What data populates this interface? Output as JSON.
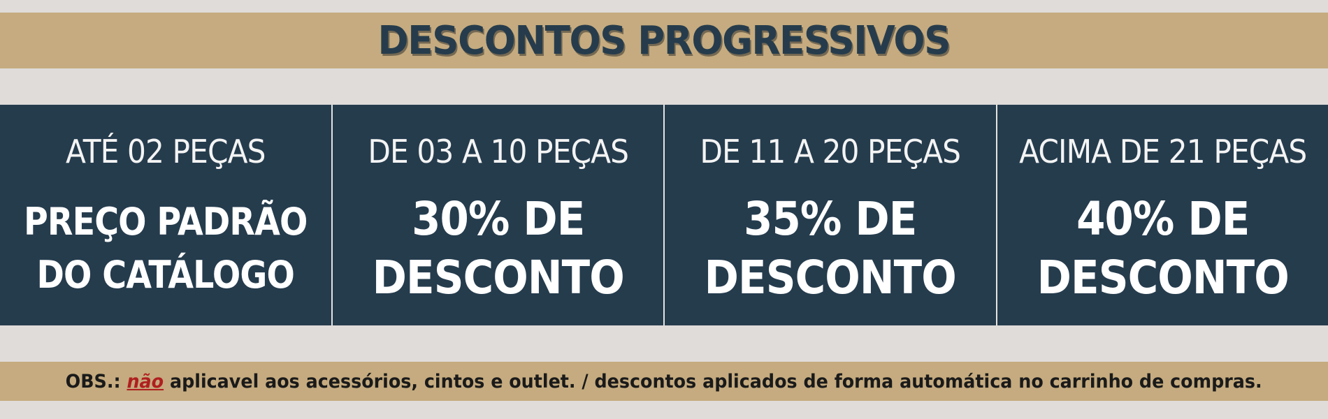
{
  "banner": {
    "title": "DESCONTOS PROGRESSIVOS"
  },
  "tiers": [
    {
      "range": "ATÉ 02 PEÇAS",
      "offer_line1": "PREÇO PADRÃO",
      "offer_line2": "DO CATÁLOGO"
    },
    {
      "range": "DE 03 A 10 PEÇAS",
      "offer_line1": "30% DE",
      "offer_line2": "DESCONTO"
    },
    {
      "range": "DE 11 A 20 PEÇAS",
      "offer_line1": "35% DE",
      "offer_line2": "DESCONTO"
    },
    {
      "range": "ACIMA DE 21  PEÇAS",
      "offer_line1": "40% DE",
      "offer_line2": "DESCONTO"
    }
  ],
  "note": {
    "prefix": "OBS.: ",
    "emphasis": "não",
    "rest": " aplicavel aos acessórios, cintos e outlet. / descontos aplicados de forma automática no carrinho de compras."
  },
  "colors": {
    "background": "#e0dcda",
    "band": "#c5ab7f",
    "panel": "#253c4d",
    "title_text": "#263c4c",
    "emphasis": "#b01f1f"
  }
}
